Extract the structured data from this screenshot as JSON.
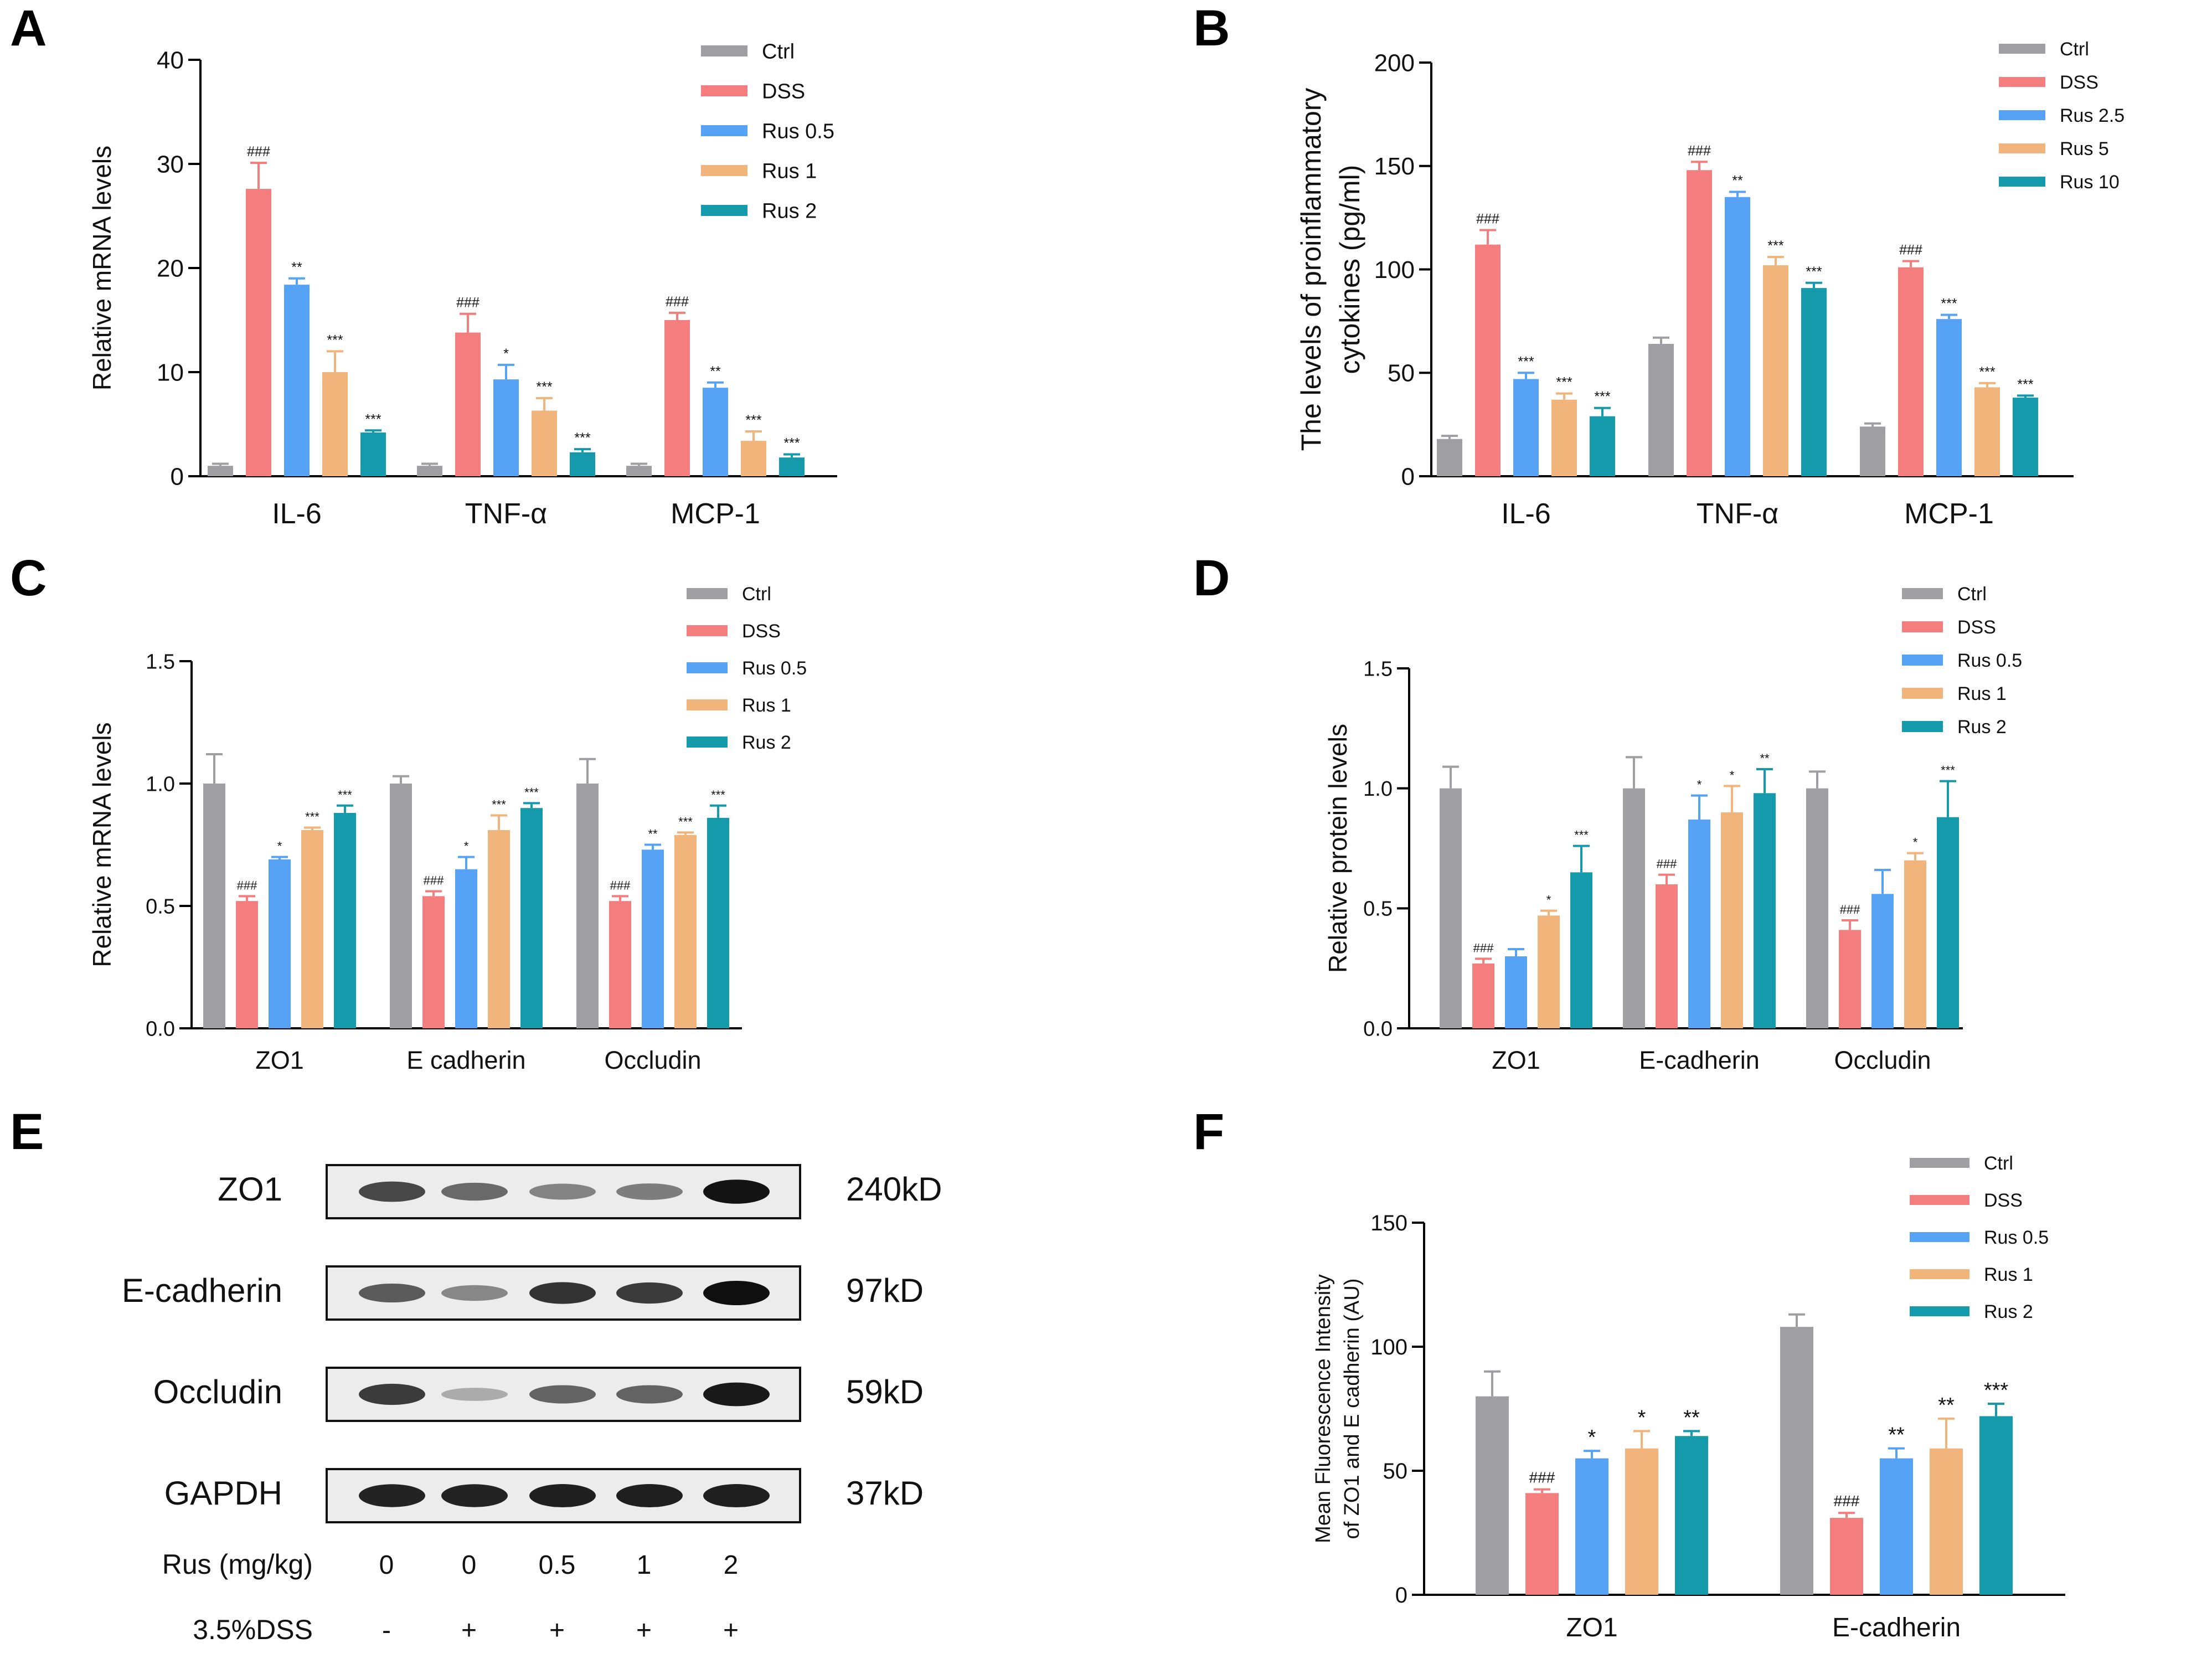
{
  "figure": {
    "panel_letters": [
      "A",
      "B",
      "C",
      "D",
      "E",
      "F"
    ]
  },
  "colors": {
    "Ctrl": "#9e9ea3",
    "DSS": "#f47d7d",
    "Rus 0.5": "#56a2f5",
    "Rus 1": "#f1b57b",
    "Rus 2": "#149aab",
    "Rus 2.5": "#56a2f5",
    "Rus 5": "#f1b57b",
    "Rus 10": "#149aab"
  },
  "chart_data": [
    {
      "panel": "A",
      "type": "bar",
      "title": "",
      "xlabel": "",
      "ylabel": "Relative  mRNA levels",
      "ylim": [
        0,
        40
      ],
      "yticks": [
        0,
        10,
        20,
        30,
        40
      ],
      "legend_position": "top-right",
      "categories": [
        "IL-6",
        "TNF-α",
        "MCP-1"
      ],
      "series": [
        {
          "name": "Ctrl",
          "values": [
            1.0,
            1.0,
            1.0
          ],
          "errors": [
            0.2,
            0.2,
            0.2
          ],
          "annotations": [
            "",
            "",
            ""
          ]
        },
        {
          "name": "DSS",
          "values": [
            27.6,
            13.8,
            15.0
          ],
          "errors": [
            2.5,
            1.8,
            0.7
          ],
          "annotations": [
            "###",
            "###",
            "###"
          ]
        },
        {
          "name": "Rus 0.5",
          "values": [
            18.4,
            9.3,
            8.5
          ],
          "errors": [
            0.6,
            1.4,
            0.5
          ],
          "annotations": [
            "**",
            "*",
            "**"
          ]
        },
        {
          "name": "Rus 1",
          "values": [
            10.0,
            6.3,
            3.4
          ],
          "errors": [
            2.0,
            1.2,
            0.9
          ],
          "annotations": [
            "***",
            "***",
            "***"
          ]
        },
        {
          "name": "Rus 2",
          "values": [
            4.2,
            2.3,
            1.8
          ],
          "errors": [
            0.2,
            0.3,
            0.3
          ],
          "annotations": [
            "***",
            "***",
            "***"
          ]
        }
      ]
    },
    {
      "panel": "B",
      "type": "bar",
      "title": "",
      "xlabel": "",
      "ylabel": "The levels of proinflammatory cytokines (pg/ml)",
      "ylabel_lines": [
        "The levels of proinflammatory",
        "cytokines (pg/ml)"
      ],
      "ylim": [
        0,
        200
      ],
      "yticks": [
        0,
        50,
        100,
        150,
        200
      ],
      "legend_position": "top-right",
      "categories": [
        "IL-6",
        "TNF-α",
        "MCP-1"
      ],
      "series": [
        {
          "name": "Ctrl",
          "values": [
            18,
            64,
            24
          ],
          "errors": [
            1.5,
            3,
            1.5
          ],
          "annotations": [
            "",
            "",
            ""
          ]
        },
        {
          "name": "DSS",
          "values": [
            112,
            148,
            101
          ],
          "errors": [
            7,
            4,
            3
          ],
          "annotations": [
            "###",
            "###",
            "###"
          ]
        },
        {
          "name": "Rus 2.5",
          "values": [
            47,
            135,
            76
          ],
          "errors": [
            3,
            2.5,
            2
          ],
          "annotations": [
            "***",
            "**",
            "***"
          ]
        },
        {
          "name": "Rus 5",
          "values": [
            37,
            102,
            43
          ],
          "errors": [
            3,
            4,
            2
          ],
          "annotations": [
            "***",
            "***",
            "***"
          ]
        },
        {
          "name": "Rus 10",
          "values": [
            29,
            91,
            38
          ],
          "errors": [
            4,
            2.5,
            1
          ],
          "annotations": [
            "***",
            "***",
            "***"
          ]
        }
      ]
    },
    {
      "panel": "C",
      "type": "bar",
      "title": "",
      "xlabel": "",
      "ylabel": "Relative  mRNA levels",
      "ylim": [
        0,
        1.5
      ],
      "yticks": [
        "0.0",
        "0.5",
        "1.0",
        "1.5"
      ],
      "legend_position": "top-right",
      "categories": [
        "ZO1",
        "E cadherin",
        "Occludin"
      ],
      "series": [
        {
          "name": "Ctrl",
          "values": [
            1.0,
            1.0,
            1.0
          ],
          "errors": [
            0.12,
            0.03,
            0.1
          ],
          "annotations": [
            "",
            "",
            ""
          ]
        },
        {
          "name": "DSS",
          "values": [
            0.52,
            0.54,
            0.52
          ],
          "errors": [
            0.02,
            0.02,
            0.02
          ],
          "annotations": [
            "###",
            "###",
            "###"
          ]
        },
        {
          "name": "Rus 0.5",
          "values": [
            0.69,
            0.65,
            0.73
          ],
          "errors": [
            0.01,
            0.05,
            0.02
          ],
          "annotations": [
            "*",
            "*",
            "**"
          ]
        },
        {
          "name": "Rus 1",
          "values": [
            0.81,
            0.81,
            0.79
          ],
          "errors": [
            0.01,
            0.06,
            0.01
          ],
          "annotations": [
            "***",
            "***",
            "***"
          ]
        },
        {
          "name": "Rus 2",
          "values": [
            0.88,
            0.9,
            0.86
          ],
          "errors": [
            0.03,
            0.02,
            0.05
          ],
          "annotations": [
            "***",
            "***",
            "***"
          ]
        }
      ]
    },
    {
      "panel": "D",
      "type": "bar",
      "title": "",
      "xlabel": "",
      "ylabel": "Relative protein levels",
      "ylim": [
        0,
        1.5
      ],
      "yticks": [
        "0.0",
        "0.5",
        "1.0",
        "1.5"
      ],
      "legend_position": "top-right",
      "categories": [
        "ZO1",
        "E-cadherin",
        "Occludin"
      ],
      "series": [
        {
          "name": "Ctrl",
          "values": [
            1.0,
            1.0,
            1.0
          ],
          "errors": [
            0.09,
            0.13,
            0.07
          ],
          "annotations": [
            "",
            "",
            ""
          ]
        },
        {
          "name": "DSS",
          "values": [
            0.27,
            0.6,
            0.41
          ],
          "errors": [
            0.02,
            0.04,
            0.04
          ],
          "annotations": [
            "###",
            "###",
            "###"
          ]
        },
        {
          "name": "Rus 0.5",
          "values": [
            0.3,
            0.87,
            0.56
          ],
          "errors": [
            0.03,
            0.1,
            0.1
          ],
          "annotations": [
            "",
            "*",
            ""
          ]
        },
        {
          "name": "Rus 1",
          "values": [
            0.47,
            0.9,
            0.7
          ],
          "errors": [
            0.02,
            0.11,
            0.03
          ],
          "annotations": [
            "*",
            "*",
            "*"
          ]
        },
        {
          "name": "Rus 2",
          "values": [
            0.65,
            0.98,
            0.88
          ],
          "errors": [
            0.11,
            0.1,
            0.15
          ],
          "annotations": [
            "***",
            "**",
            "***"
          ]
        }
      ]
    },
    {
      "panel": "F",
      "type": "bar",
      "title": "",
      "xlabel": "",
      "ylabel": "Mean Fluorescence Intensity of ZO1 and E cadherin (AU)",
      "ylabel_lines": [
        "Mean Fluorescence Intensity",
        "of ZO1 and E cadherin (AU)"
      ],
      "ylim": [
        0,
        150
      ],
      "yticks": [
        0,
        50,
        100,
        150
      ],
      "legend_position": "top-right",
      "categories": [
        "ZO1",
        "E-cadherin"
      ],
      "series": [
        {
          "name": "Ctrl",
          "values": [
            80,
            108
          ],
          "errors": [
            10,
            5
          ],
          "annotations": [
            "",
            ""
          ]
        },
        {
          "name": "DSS",
          "values": [
            41,
            31
          ],
          "errors": [
            1.5,
            2
          ],
          "annotations": [
            "###",
            "###"
          ]
        },
        {
          "name": "Rus 0.5",
          "values": [
            55,
            55
          ],
          "errors": [
            3,
            4
          ],
          "annotations": [
            "*",
            "**"
          ]
        },
        {
          "name": "Rus 1",
          "values": [
            59,
            59
          ],
          "errors": [
            7,
            12
          ],
          "annotations": [
            "*",
            "**"
          ]
        },
        {
          "name": "Rus 2",
          "values": [
            64,
            72
          ],
          "errors": [
            2,
            5
          ],
          "annotations": [
            "**",
            "***"
          ]
        }
      ]
    }
  ],
  "blot": {
    "panel": "E",
    "bands": [
      {
        "protein": "ZO1",
        "size": "240kD",
        "intensities": [
          0.72,
          0.55,
          0.42,
          0.45,
          0.98
        ]
      },
      {
        "protein": "E-cadherin",
        "size": "97kD",
        "intensities": [
          0.62,
          0.4,
          0.82,
          0.78,
          1.0
        ]
      },
      {
        "protein": "Occludin",
        "size": "59kD",
        "intensities": [
          0.78,
          0.22,
          0.58,
          0.58,
          0.95
        ]
      },
      {
        "protein": "GAPDH",
        "size": "37kD",
        "intensities": [
          0.9,
          0.9,
          0.92,
          0.92,
          0.92
        ]
      }
    ],
    "rus_label": "Rus (mg/kg)",
    "rus_values": [
      "0",
      "0",
      "0.5",
      "1",
      "2"
    ],
    "dss_label": "3.5%DSS",
    "dss_values": [
      "-",
      "+",
      "+",
      "+",
      "+"
    ]
  }
}
